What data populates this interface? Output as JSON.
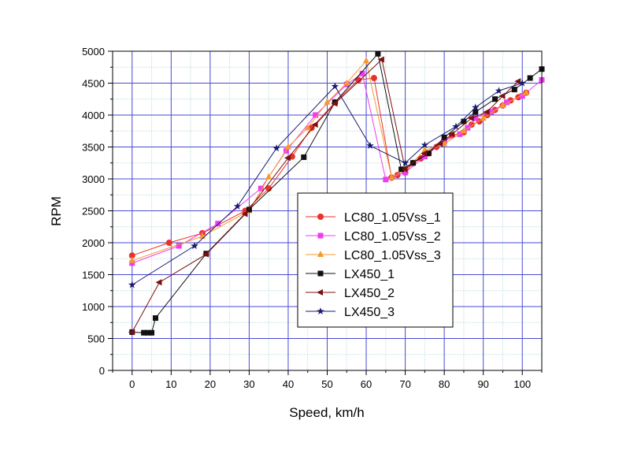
{
  "chart_data": {
    "type": "line",
    "title": "",
    "xlabel": "Speed, km/h",
    "ylabel": "RPM",
    "xlim": [
      -5,
      105
    ],
    "ylim": [
      0,
      5000
    ],
    "xticks": [
      0,
      10,
      20,
      30,
      40,
      50,
      60,
      70,
      80,
      90,
      100
    ],
    "yticks": [
      0,
      500,
      1000,
      1500,
      2000,
      2500,
      3000,
      3500,
      4000,
      4500,
      5000
    ],
    "grid": true,
    "legend_position": "center-left",
    "series": [
      {
        "name": "LC80_1.05Vss_1",
        "color": "#e8322a",
        "marker": "circle",
        "points": [
          [
            0,
            1800
          ],
          [
            9.5,
            2000
          ],
          [
            18,
            2150
          ],
          [
            29,
            2500
          ],
          [
            35,
            2850
          ],
          [
            41,
            3350
          ],
          [
            46,
            3800
          ],
          [
            52,
            4200
          ],
          [
            58,
            4550
          ],
          [
            62,
            4580
          ],
          [
            66.5,
            3020
          ],
          [
            68,
            3060
          ],
          [
            70,
            3100
          ],
          [
            72,
            3250
          ],
          [
            74,
            3320
          ],
          [
            76,
            3400
          ],
          [
            78,
            3500
          ],
          [
            80,
            3580
          ],
          [
            82,
            3680
          ],
          [
            85,
            3730
          ],
          [
            87,
            3850
          ],
          [
            89,
            3900
          ],
          [
            91,
            4000
          ],
          [
            93,
            4080
          ],
          [
            95,
            4150
          ],
          [
            97,
            4230
          ],
          [
            99,
            4280
          ],
          [
            101,
            4350
          ]
        ]
      },
      {
        "name": "LC80_1.05Vss_2",
        "color": "#f03cf0",
        "marker": "square",
        "points": [
          [
            0,
            1680
          ],
          [
            12,
            1950
          ],
          [
            22,
            2300
          ],
          [
            33,
            2850
          ],
          [
            39.5,
            3440
          ],
          [
            47,
            4000
          ],
          [
            55,
            4480
          ],
          [
            59,
            4650
          ],
          [
            65,
            2990
          ],
          [
            70,
            3100
          ],
          [
            75,
            3350
          ],
          [
            80,
            3600
          ],
          [
            84,
            3700
          ],
          [
            86,
            3800
          ],
          [
            88,
            3950
          ],
          [
            92,
            4050
          ],
          [
            96,
            4200
          ],
          [
            100,
            4300
          ],
          [
            105,
            4550
          ]
        ]
      },
      {
        "name": "LC80_1.05Vss_3",
        "color": "#f39a2e",
        "marker": "triangle-up",
        "points": [
          [
            0,
            1720
          ],
          [
            18,
            2100
          ],
          [
            30,
            2500
          ],
          [
            35,
            3030
          ],
          [
            40,
            3500
          ],
          [
            45,
            3800
          ],
          [
            50,
            4200
          ],
          [
            55,
            4500
          ],
          [
            60,
            4850
          ],
          [
            66.5,
            3020
          ],
          [
            70,
            3150
          ],
          [
            75,
            3450
          ],
          [
            80,
            3550
          ],
          [
            85,
            3750
          ],
          [
            90,
            3950
          ],
          [
            95,
            4150
          ],
          [
            101,
            4350
          ]
        ]
      },
      {
        "name": "LX450_1",
        "color": "#111111",
        "marker": "square",
        "points": [
          [
            0,
            600
          ],
          [
            3,
            590
          ],
          [
            4,
            590
          ],
          [
            5,
            590
          ],
          [
            6,
            820
          ],
          [
            19,
            1830
          ],
          [
            30,
            2520
          ],
          [
            44,
            3340
          ],
          [
            52,
            4200
          ],
          [
            63,
            4960
          ],
          [
            69,
            3150
          ],
          [
            72,
            3250
          ],
          [
            76,
            3400
          ],
          [
            80,
            3650
          ],
          [
            85,
            3900
          ],
          [
            88,
            4050
          ],
          [
            93,
            4250
          ],
          [
            98,
            4400
          ],
          [
            102,
            4580
          ],
          [
            105,
            4720
          ]
        ]
      },
      {
        "name": "LX450_2",
        "color": "#7a1010",
        "marker": "triangle-left",
        "points": [
          [
            0,
            600
          ],
          [
            7,
            1380
          ],
          [
            19,
            1820
          ],
          [
            29,
            2450
          ],
          [
            40,
            3330
          ],
          [
            47,
            3850
          ],
          [
            52,
            4180
          ],
          [
            64,
            4870
          ],
          [
            70,
            3150
          ],
          [
            75,
            3400
          ],
          [
            79,
            3550
          ],
          [
            82,
            3700
          ],
          [
            87,
            3950
          ],
          [
            91,
            4050
          ],
          [
            95,
            4300
          ],
          [
            99,
            4530
          ]
        ]
      },
      {
        "name": "LX450_3",
        "color": "#1a1a70",
        "marker": "star",
        "points": [
          [
            0,
            1340
          ],
          [
            16,
            1950
          ],
          [
            27,
            2570
          ],
          [
            37,
            3480
          ],
          [
            52,
            4450
          ],
          [
            61,
            3520
          ],
          [
            70,
            3250
          ],
          [
            75,
            3530
          ],
          [
            83,
            3820
          ],
          [
            88,
            4120
          ],
          [
            94,
            4380
          ],
          [
            100,
            4500
          ]
        ]
      }
    ]
  }
}
